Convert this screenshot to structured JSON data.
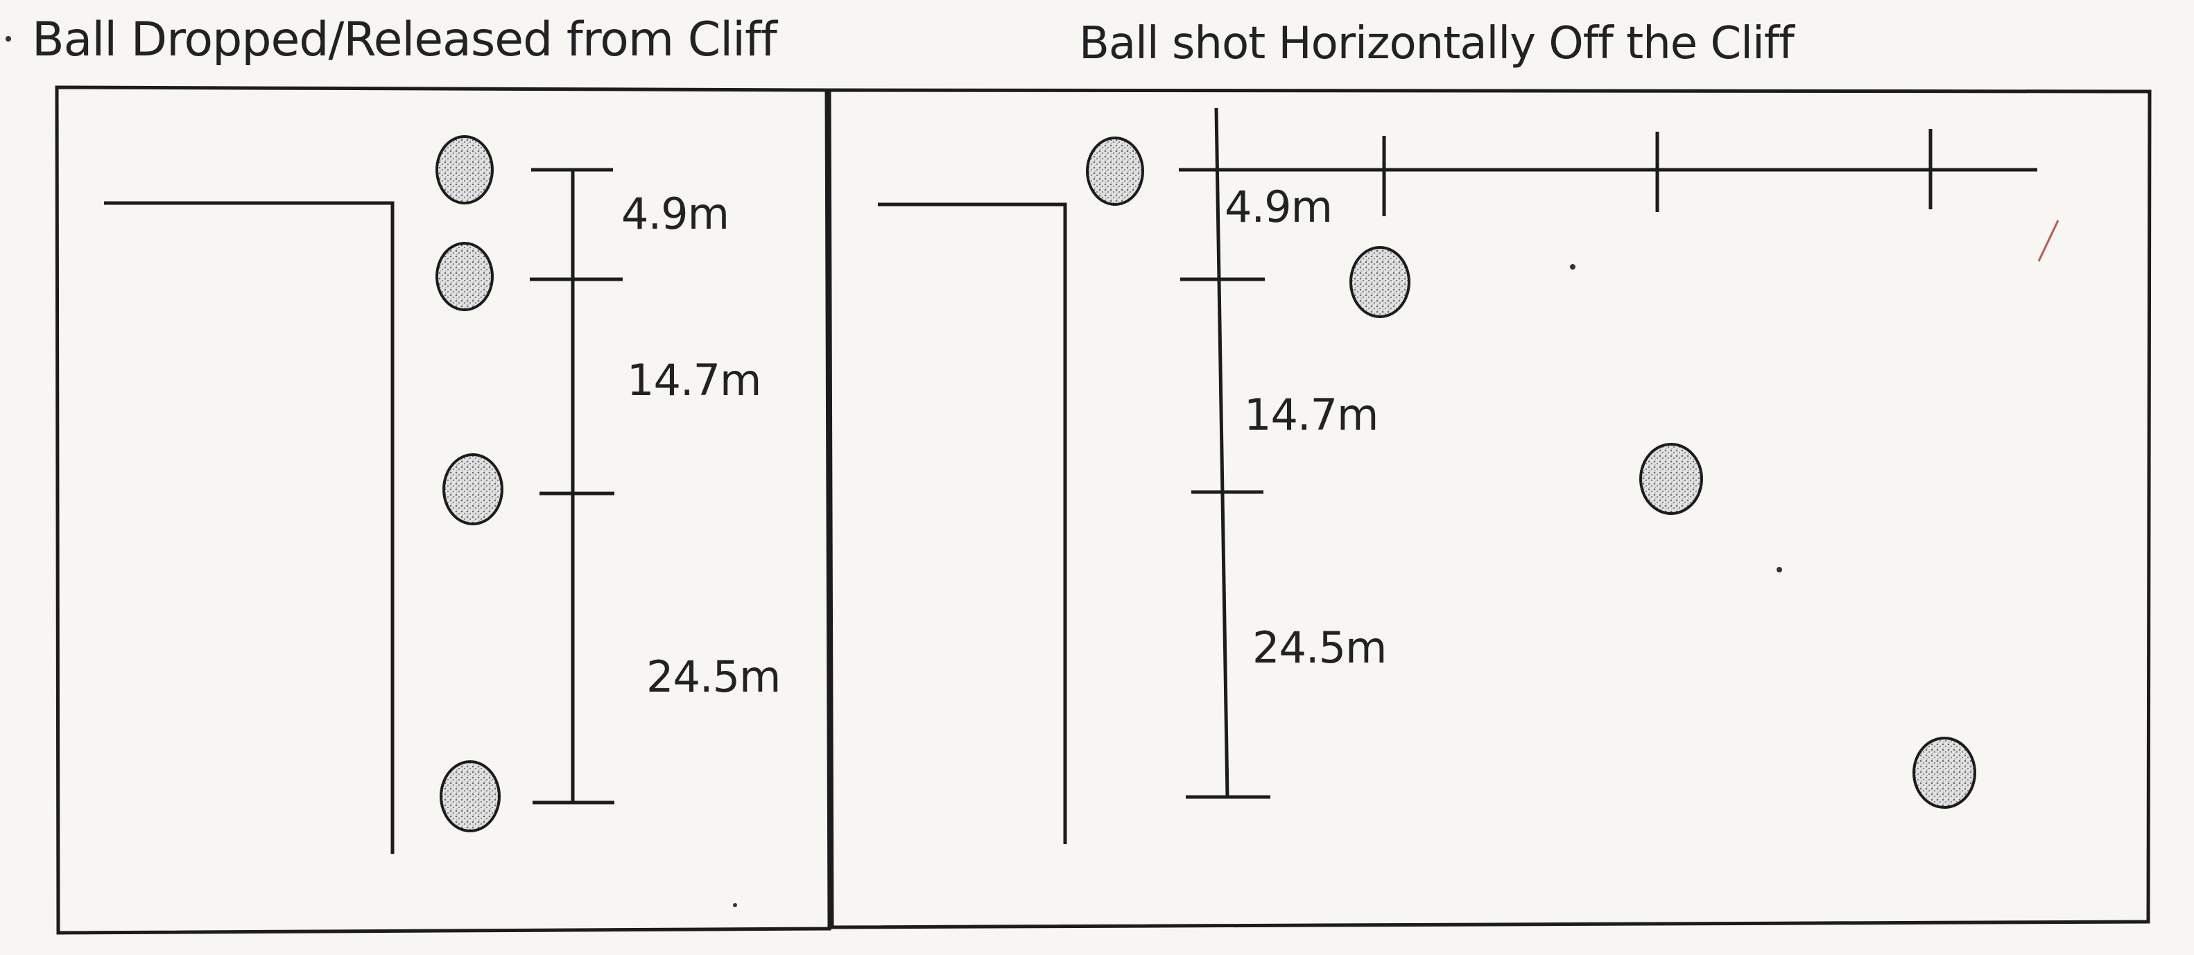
{
  "panels": {
    "left": {
      "title": "Ball Dropped/Released from Cliff",
      "labels": [
        "4.9m",
        "14.7m",
        "24.5m"
      ]
    },
    "right": {
      "title": "Ball shot Horizontally Off the Cliff",
      "labels": [
        "4.9m",
        "14.7m",
        "24.5m"
      ]
    }
  },
  "colors": {
    "ink": "#1c1c1c",
    "ball_fill": "#d4d4d4",
    "paper": "#f7f6f2"
  }
}
